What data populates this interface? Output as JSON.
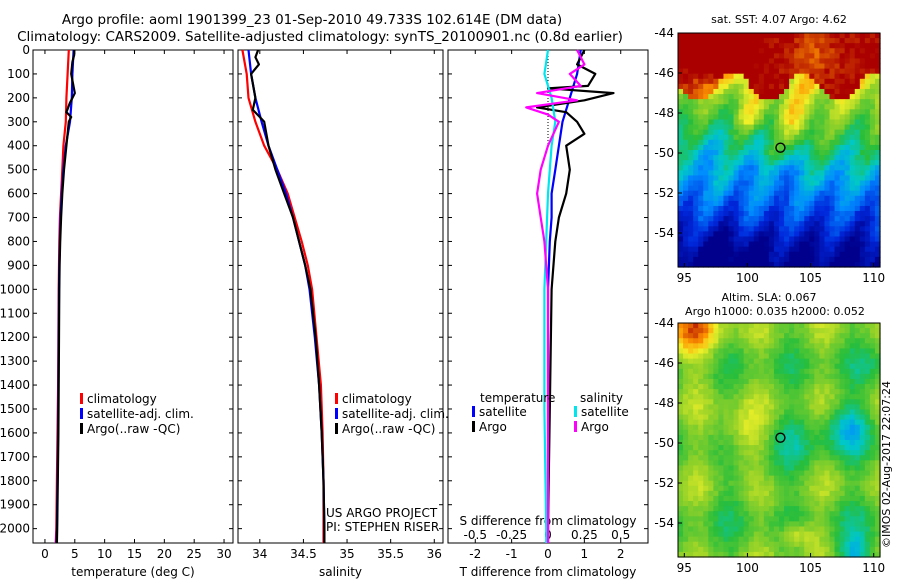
{
  "header": {
    "title_line1": "Argo profile: aoml 1901399_23 01-Sep-2010 49.733S 102.614E (DM data)",
    "title_line2": "Climatology: CARS2009. Satellite-adjusted climatology: synTS_20100901.nc (0.8d earlier)"
  },
  "colors": {
    "climatology": "#ff0000",
    "satellite": "#0000ff",
    "argo": "#000000",
    "sal_satellite": "#00e5ee",
    "sal_argo": "#ff00ff"
  },
  "depth_ticks": [
    "0",
    "100",
    "200",
    "300",
    "400",
    "500",
    "600",
    "700",
    "800",
    "900",
    "1000",
    "1100",
    "1200",
    "1300",
    "1400",
    "1500",
    "1600",
    "1700",
    "1800",
    "1900",
    "2000"
  ],
  "chart_data": [
    {
      "type": "line",
      "xlabel": "temperature (deg C)",
      "ylabel": "",
      "xticks": [
        "0",
        "5",
        "10",
        "15",
        "20",
        "25",
        "30"
      ],
      "xlim": [
        -2,
        31.5
      ],
      "ylim": [
        2060,
        0
      ],
      "legend": {
        "placement": "bottom-middle",
        "entries": [
          "climatology",
          "satellite-adj. clim.",
          "Argo(..raw -QC)"
        ]
      },
      "series": [
        {
          "name": "climatology",
          "color": "#ff0000",
          "points": [
            [
              4.0,
              0
            ],
            [
              3.8,
              100
            ],
            [
              3.6,
              200
            ],
            [
              3.5,
              300
            ],
            [
              3.1,
              400
            ],
            [
              2.9,
              500
            ],
            [
              2.7,
              600
            ],
            [
              2.5,
              700
            ],
            [
              2.4,
              800
            ],
            [
              2.35,
              900
            ],
            [
              2.3,
              1000
            ],
            [
              2.25,
              1200
            ],
            [
              2.2,
              1400
            ],
            [
              2.1,
              1600
            ],
            [
              2.0,
              1800
            ],
            [
              1.9,
              2000
            ],
            [
              1.8,
              2060
            ]
          ]
        },
        {
          "name": "satellite-adj. clim.",
          "color": "#0000ff",
          "points": [
            [
              4.8,
              0
            ],
            [
              4.6,
              100
            ],
            [
              4.5,
              200
            ],
            [
              4.2,
              300
            ],
            [
              3.5,
              400
            ],
            [
              3.1,
              500
            ],
            [
              2.8,
              600
            ],
            [
              2.6,
              700
            ],
            [
              2.5,
              800
            ],
            [
              2.4,
              900
            ],
            [
              2.35,
              1000
            ],
            [
              2.3,
              1200
            ],
            [
              2.25,
              1400
            ],
            [
              2.2,
              1600
            ],
            [
              2.1,
              1800
            ],
            [
              2.0,
              2000
            ],
            [
              1.9,
              2060
            ]
          ]
        },
        {
          "name": "Argo(..raw -QC)",
          "color": "#000000",
          "points": [
            [
              4.9,
              0
            ],
            [
              4.9,
              20
            ],
            [
              4.6,
              50
            ],
            [
              4.4,
              100
            ],
            [
              5.0,
              180
            ],
            [
              4.2,
              220
            ],
            [
              3.6,
              260
            ],
            [
              4.4,
              280
            ],
            [
              4.0,
              300
            ],
            [
              3.6,
              400
            ],
            [
              3.2,
              500
            ],
            [
              2.9,
              600
            ],
            [
              2.7,
              700
            ],
            [
              2.55,
              800
            ],
            [
              2.45,
              900
            ],
            [
              2.4,
              1000
            ],
            [
              2.35,
              1200
            ],
            [
              2.3,
              1400
            ],
            [
              2.25,
              1600
            ],
            [
              2.15,
              1800
            ],
            [
              2.05,
              2000
            ],
            [
              2.0,
              2060
            ]
          ]
        }
      ]
    },
    {
      "type": "line",
      "xlabel": "salinity",
      "ylabel": "",
      "xticks": [
        "34",
        "34.5",
        "35",
        "35.5",
        "36"
      ],
      "xlim": [
        33.75,
        36.1
      ],
      "ylim": [
        2060,
        0
      ],
      "legend": {
        "placement": "bottom-middle",
        "entries": [
          "climatology",
          "satellite-adj. clim.",
          "Argo(..raw -QC)"
        ]
      },
      "annotations": [
        "US ARGO PROJECT",
        "PI: STEPHEN RISER"
      ],
      "series": [
        {
          "name": "climatology",
          "color": "#ff0000",
          "points": [
            [
              33.8,
              0
            ],
            [
              33.85,
              100
            ],
            [
              33.87,
              200
            ],
            [
              33.95,
              300
            ],
            [
              34.05,
              400
            ],
            [
              34.2,
              500
            ],
            [
              34.32,
              600
            ],
            [
              34.4,
              700
            ],
            [
              34.48,
              800
            ],
            [
              34.55,
              900
            ],
            [
              34.6,
              1000
            ],
            [
              34.65,
              1200
            ],
            [
              34.7,
              1400
            ],
            [
              34.72,
              1600
            ],
            [
              34.73,
              1800
            ],
            [
              34.73,
              2000
            ],
            [
              34.73,
              2060
            ]
          ]
        },
        {
          "name": "satellite-adj. clim.",
          "color": "#0000ff",
          "points": [
            [
              33.87,
              0
            ],
            [
              33.9,
              100
            ],
            [
              33.95,
              200
            ],
            [
              34.02,
              300
            ],
            [
              34.1,
              400
            ],
            [
              34.2,
              500
            ],
            [
              34.3,
              600
            ],
            [
              34.38,
              700
            ],
            [
              34.45,
              800
            ],
            [
              34.52,
              900
            ],
            [
              34.57,
              1000
            ],
            [
              34.63,
              1200
            ],
            [
              34.68,
              1400
            ],
            [
              34.71,
              1600
            ],
            [
              34.73,
              1800
            ],
            [
              34.74,
              2000
            ],
            [
              34.74,
              2060
            ]
          ]
        },
        {
          "name": "Argo(..raw -QC)",
          "color": "#000000",
          "points": [
            [
              33.98,
              0
            ],
            [
              33.95,
              30
            ],
            [
              33.99,
              60
            ],
            [
              33.9,
              100
            ],
            [
              33.95,
              200
            ],
            [
              33.92,
              250
            ],
            [
              34.0,
              280
            ],
            [
              34.05,
              300
            ],
            [
              34.1,
              400
            ],
            [
              34.18,
              500
            ],
            [
              34.28,
              600
            ],
            [
              34.38,
              700
            ],
            [
              34.45,
              800
            ],
            [
              34.52,
              900
            ],
            [
              34.58,
              1000
            ],
            [
              34.64,
              1200
            ],
            [
              34.68,
              1400
            ],
            [
              34.71,
              1600
            ],
            [
              34.73,
              1800
            ],
            [
              34.74,
              2000
            ],
            [
              34.74,
              2060
            ]
          ]
        }
      ]
    },
    {
      "type": "line",
      "xlabel": "T difference from climatology",
      "xlabel_top": "S difference from climatology",
      "ylabel": "",
      "xticks": [
        "-2",
        "-1",
        "0",
        "1",
        "2"
      ],
      "xticks_top": [
        "-0.5",
        "-0.25",
        "0",
        "0.25",
        "0.5"
      ],
      "xlim": [
        -2.75,
        2.75
      ],
      "ylim": [
        2060,
        0
      ],
      "legend": {
        "placement": "bottom",
        "entries": [
          "temperature",
          "satellite",
          "Argo",
          "salinity",
          "satellite",
          "Argo"
        ]
      },
      "series": [
        {
          "name": "satellite",
          "color": "#0000ff",
          "points": [
            [
              0.9,
              0
            ],
            [
              0.8,
              100
            ],
            [
              0.6,
              200
            ],
            [
              0.4,
              300
            ],
            [
              0.3,
              400
            ],
            [
              0.2,
              500
            ],
            [
              0.1,
              600
            ],
            [
              0.1,
              700
            ],
            [
              0.05,
              800
            ],
            [
              0.0,
              1000
            ],
            [
              0.0,
              1500
            ],
            [
              0.0,
              2000
            ],
            [
              0.0,
              2060
            ]
          ]
        },
        {
          "name": "Argo",
          "color": "#000000",
          "points": [
            [
              1.0,
              0
            ],
            [
              0.8,
              60
            ],
            [
              1.3,
              100
            ],
            [
              1.1,
              150
            ],
            [
              0.0,
              160
            ],
            [
              1.8,
              180
            ],
            [
              1.0,
              210
            ],
            [
              -0.3,
              240
            ],
            [
              0.5,
              260
            ],
            [
              0.8,
              300
            ],
            [
              1.0,
              350
            ],
            [
              0.5,
              400
            ],
            [
              0.6,
              500
            ],
            [
              0.5,
              600
            ],
            [
              0.3,
              700
            ],
            [
              0.2,
              800
            ],
            [
              0.1,
              1000
            ],
            [
              0.05,
              1500
            ],
            [
              0.0,
              2000
            ],
            [
              0.0,
              2060
            ]
          ]
        },
        {
          "name": "sal satellite",
          "color": "#00e5ee",
          "points": [
            [
              0.0,
              0
            ],
            [
              -0.1,
              100
            ],
            [
              0.1,
              200
            ],
            [
              0.2,
              300
            ],
            [
              0.1,
              400
            ],
            [
              0.0,
              600
            ],
            [
              -0.05,
              800
            ],
            [
              -0.1,
              1000
            ],
            [
              -0.1,
              1500
            ],
            [
              -0.05,
              2000
            ],
            [
              -0.05,
              2060
            ]
          ]
        },
        {
          "name": "sal Argo",
          "color": "#ff00ff",
          "points": [
            [
              0.8,
              0
            ],
            [
              1.0,
              60
            ],
            [
              0.6,
              100
            ],
            [
              0.9,
              150
            ],
            [
              -0.3,
              180
            ],
            [
              0.8,
              210
            ],
            [
              -0.6,
              240
            ],
            [
              0.0,
              270
            ],
            [
              0.3,
              300
            ],
            [
              0.0,
              400
            ],
            [
              -0.2,
              500
            ],
            [
              -0.3,
              600
            ],
            [
              -0.2,
              700
            ],
            [
              -0.1,
              800
            ],
            [
              0.0,
              1000
            ],
            [
              0.0,
              1500
            ],
            [
              0.0,
              2000
            ],
            [
              0.0,
              2060
            ]
          ]
        }
      ]
    },
    {
      "type": "heatmap",
      "title": "sat. SST: 4.07 Argo: 4.62",
      "xticks": [
        "95",
        "100",
        "105",
        "110"
      ],
      "yticks": [
        "-44",
        "-46",
        "-48",
        "-50",
        "-52",
        "-54"
      ],
      "xlim": [
        94.5,
        110.5
      ],
      "ylim": [
        -55.7,
        -44
      ],
      "marker": [
        102.614,
        -49.733
      ]
    },
    {
      "type": "heatmap",
      "title": "Altim. SLA: 0.067",
      "subtitle": "Argo h1000: 0.035 h2000: 0.052",
      "xticks": [
        "95",
        "100",
        "105",
        "110"
      ],
      "yticks": [
        "-44",
        "-46",
        "-48",
        "-50",
        "-52",
        "-54"
      ],
      "xlim": [
        94.5,
        110.5
      ],
      "ylim": [
        -55.7,
        -44
      ],
      "marker": [
        102.614,
        -49.733
      ]
    }
  ],
  "watermark": "©IMOS 02-Aug-2017 22:07:24"
}
